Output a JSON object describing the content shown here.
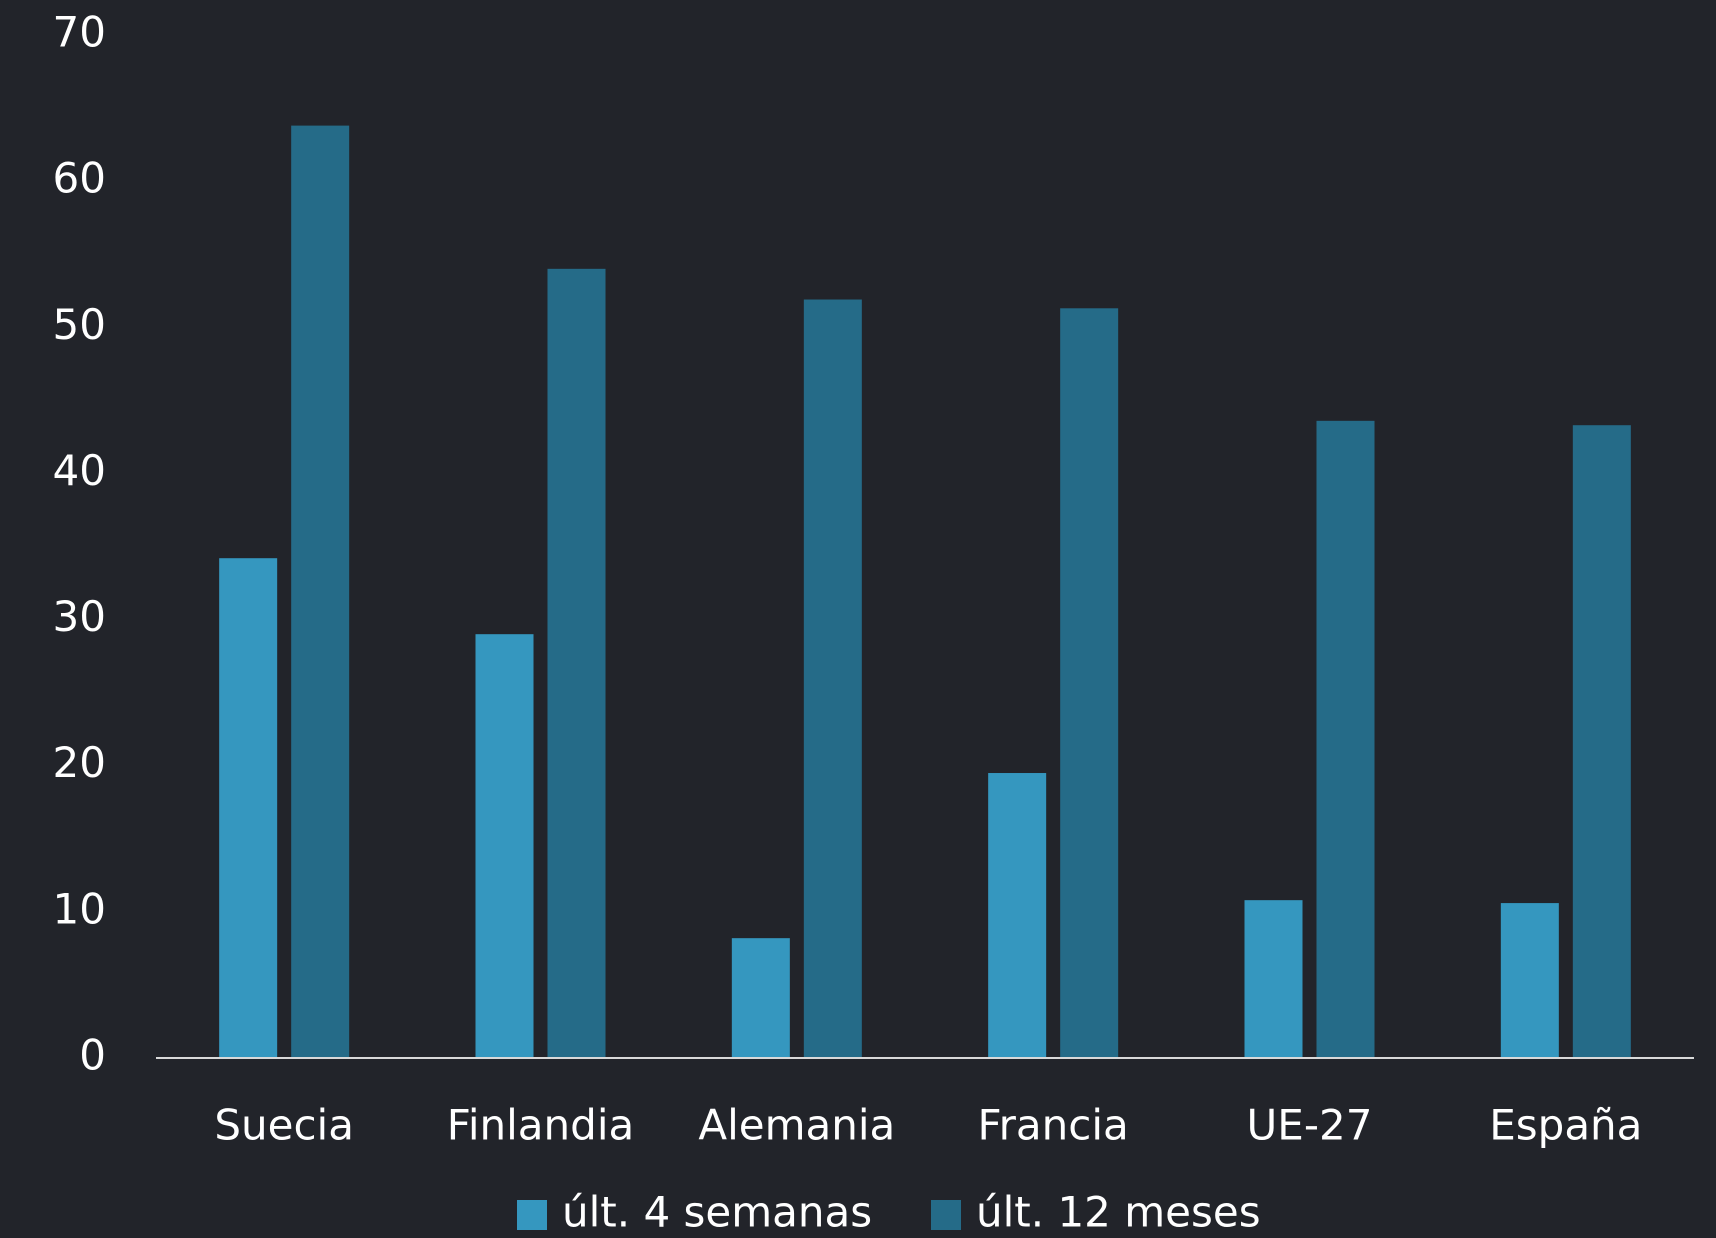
{
  "chart_data": {
    "type": "bar",
    "categories": [
      "Suecia",
      "Finlandia",
      "Alemania",
      "Francia",
      "UE-27",
      "España"
    ],
    "series": [
      {
        "name": "últ. 4 semanas",
        "color": "#3597bf",
        "values": [
          34.2,
          29.0,
          8.2,
          19.5,
          10.8,
          10.6
        ]
      },
      {
        "name": "últ. 12 meses",
        "color": "#256b88",
        "values": [
          63.8,
          54.0,
          51.9,
          51.3,
          43.6,
          43.3
        ]
      }
    ],
    "ylim": [
      0,
      70
    ],
    "yticks": [
      0,
      10,
      20,
      30,
      40,
      50,
      60,
      70
    ],
    "grid": false,
    "legend": "bottom"
  }
}
